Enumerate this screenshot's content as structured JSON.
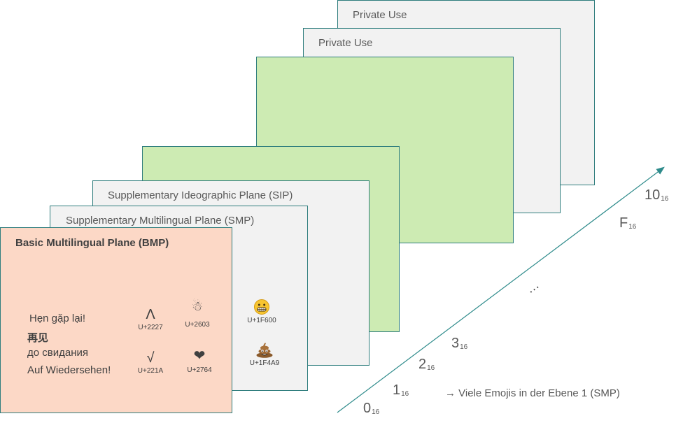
{
  "planes": {
    "private_use_1": "Private Use",
    "private_use_2": "Private Use",
    "sip": "Supplementary Ideographic Plane (SIP)",
    "smp": "Supplementary Multilingual Plane (SMP)",
    "bmp": "Basic Multilingual Plane (BMP)"
  },
  "greetings": [
    "Hẹn gặp lại!",
    "再见",
    "до свидания",
    "Auf Wiedersehen!"
  ],
  "bmp_symbols": [
    {
      "glyph": "Λ",
      "code": "U+2227",
      "icon": "logical-and-icon"
    },
    {
      "glyph": "☃",
      "code": "U+2603",
      "icon": "snowman-icon"
    },
    {
      "glyph": "√",
      "code": "U+221A",
      "icon": "square-root-icon"
    },
    {
      "glyph": "❤",
      "code": "U+2764",
      "icon": "heart-icon"
    }
  ],
  "smp_symbols": [
    {
      "code": "U+1F600",
      "icon": "grinning-face-icon"
    },
    {
      "code": "U+1F4A9",
      "icon": "pile-of-poo-icon"
    }
  ],
  "axis": {
    "labels": [
      {
        "main": "0",
        "sub": "16"
      },
      {
        "main": "1",
        "sub": "16"
      },
      {
        "main": "2",
        "sub": "16"
      },
      {
        "main": "3",
        "sub": "16"
      },
      {
        "main": "F",
        "sub": "16"
      },
      {
        "main": "10",
        "sub": "16"
      }
    ],
    "ellipsis": "…",
    "color": "#2e8b8b"
  },
  "note": "→ Viele Emojis in der Ebene 1 (SMP)",
  "colors": {
    "grey_plane": "#f2f2f2",
    "green_plane": "#cdebb3",
    "bmp_plane": "#fcd8c6",
    "border": "#2e7d7d"
  }
}
